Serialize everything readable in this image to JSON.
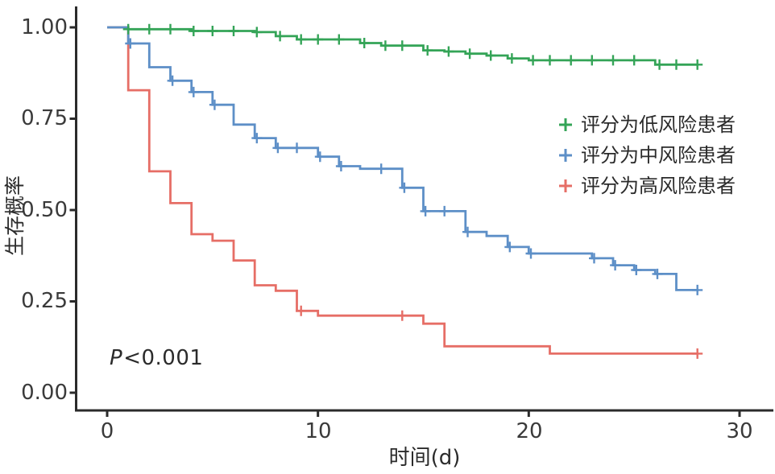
{
  "figure": {
    "pvalue": {
      "variable": "P",
      "comparison": "<0.001"
    }
  },
  "chart_data": {
    "type": "line",
    "subtype": "kaplan-meier-step",
    "title": "",
    "xlabel": "时间(d)",
    "ylabel": "生存概率",
    "xlim": [
      0,
      30
    ],
    "ylim": [
      0.0,
      1.0
    ],
    "xticks": [
      "0",
      "10",
      "20",
      "30"
    ],
    "yticks": [
      "0.00",
      "0.25",
      "0.50",
      "0.75",
      "1.00"
    ],
    "grid": "off",
    "legend_position": "right-middle",
    "annotation": "P<0.001",
    "axis_color": "#2b2b2b",
    "tick_text_color": "#3a3a3a",
    "series": [
      {
        "name": "评分为低风险患者",
        "color": "#34a457",
        "end_time": 28,
        "steps": [
          [
            0,
            1.0
          ],
          [
            1,
            0.995
          ],
          [
            4,
            0.99
          ],
          [
            7,
            0.987
          ],
          [
            8,
            0.976
          ],
          [
            9,
            0.967
          ],
          [
            12,
            0.957
          ],
          [
            13,
            0.95
          ],
          [
            15,
            0.937
          ],
          [
            16,
            0.934
          ],
          [
            17,
            0.928
          ],
          [
            18,
            0.923
          ],
          [
            19,
            0.915
          ],
          [
            20,
            0.91
          ],
          [
            26,
            0.898
          ]
        ],
        "censors": [
          [
            1,
            0.995
          ],
          [
            2,
            0.995
          ],
          [
            3,
            0.995
          ],
          [
            4.1,
            0.99
          ],
          [
            5,
            0.99
          ],
          [
            6,
            0.99
          ],
          [
            7.1,
            0.987
          ],
          [
            8.2,
            0.976
          ],
          [
            9.2,
            0.967
          ],
          [
            10,
            0.967
          ],
          [
            11,
            0.967
          ],
          [
            12.2,
            0.957
          ],
          [
            13.2,
            0.95
          ],
          [
            14,
            0.95
          ],
          [
            15.2,
            0.937
          ],
          [
            16.2,
            0.934
          ],
          [
            17.2,
            0.928
          ],
          [
            18.2,
            0.923
          ],
          [
            19.2,
            0.915
          ],
          [
            20.2,
            0.91
          ],
          [
            21,
            0.91
          ],
          [
            22,
            0.91
          ],
          [
            23,
            0.91
          ],
          [
            24,
            0.91
          ],
          [
            25,
            0.91
          ],
          [
            26.2,
            0.898
          ],
          [
            27,
            0.898
          ],
          [
            28,
            0.898
          ]
        ]
      },
      {
        "name": "评分为中风险患者",
        "color": "#5d8fc7",
        "end_time": 28,
        "steps": [
          [
            0,
            1.0
          ],
          [
            1,
            0.956
          ],
          [
            2,
            0.891
          ],
          [
            3,
            0.854
          ],
          [
            4,
            0.823
          ],
          [
            5,
            0.788
          ],
          [
            6,
            0.734
          ],
          [
            7,
            0.697
          ],
          [
            8,
            0.67
          ],
          [
            10,
            0.646
          ],
          [
            11,
            0.62
          ],
          [
            12,
            0.613
          ],
          [
            14,
            0.561
          ],
          [
            15,
            0.497
          ],
          [
            17,
            0.44
          ],
          [
            18,
            0.429
          ],
          [
            19,
            0.399
          ],
          [
            20,
            0.381
          ],
          [
            23,
            0.368
          ],
          [
            24,
            0.349
          ],
          [
            25,
            0.336
          ],
          [
            26,
            0.325
          ],
          [
            27,
            0.281
          ]
        ],
        "censors": [
          [
            1.1,
            0.956
          ],
          [
            3.1,
            0.854
          ],
          [
            4.1,
            0.823
          ],
          [
            5.1,
            0.788
          ],
          [
            7.1,
            0.697
          ],
          [
            8.1,
            0.67
          ],
          [
            9,
            0.67
          ],
          [
            10.1,
            0.646
          ],
          [
            11.1,
            0.62
          ],
          [
            13,
            0.613
          ],
          [
            14.1,
            0.561
          ],
          [
            15.1,
            0.497
          ],
          [
            16,
            0.497
          ],
          [
            17.1,
            0.44
          ],
          [
            19.1,
            0.399
          ],
          [
            20.1,
            0.381
          ],
          [
            23.1,
            0.368
          ],
          [
            24.1,
            0.349
          ],
          [
            25.1,
            0.336
          ],
          [
            26.1,
            0.325
          ],
          [
            28,
            0.281
          ]
        ]
      },
      {
        "name": "评分为高风险患者",
        "color": "#e66e66",
        "end_time": 28,
        "steps": [
          [
            0,
            1.0
          ],
          [
            1,
            0.828
          ],
          [
            2,
            0.606
          ],
          [
            3,
            0.519
          ],
          [
            4,
            0.434
          ],
          [
            5,
            0.416
          ],
          [
            6,
            0.362
          ],
          [
            7,
            0.294
          ],
          [
            8,
            0.279
          ],
          [
            9,
            0.224
          ],
          [
            10,
            0.211
          ],
          [
            15,
            0.189
          ],
          [
            16,
            0.127
          ],
          [
            21,
            0.107
          ]
        ],
        "censors": [
          [
            9.2,
            0.224
          ],
          [
            14,
            0.211
          ],
          [
            28,
            0.107
          ]
        ]
      }
    ]
  }
}
